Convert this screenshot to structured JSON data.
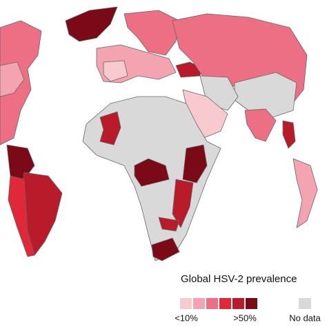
{
  "legend": {
    "title": "Global HSV-2 prevalence",
    "low_label": "<10%",
    "high_label": ">50%",
    "no_data_label": "No data",
    "colors": [
      "#f9c9d0",
      "#f4a3b0",
      "#ec6f84",
      "#e02838",
      "#b81b2a",
      "#7a0a16"
    ],
    "no_data_color": "#d9d9d9"
  }
}
